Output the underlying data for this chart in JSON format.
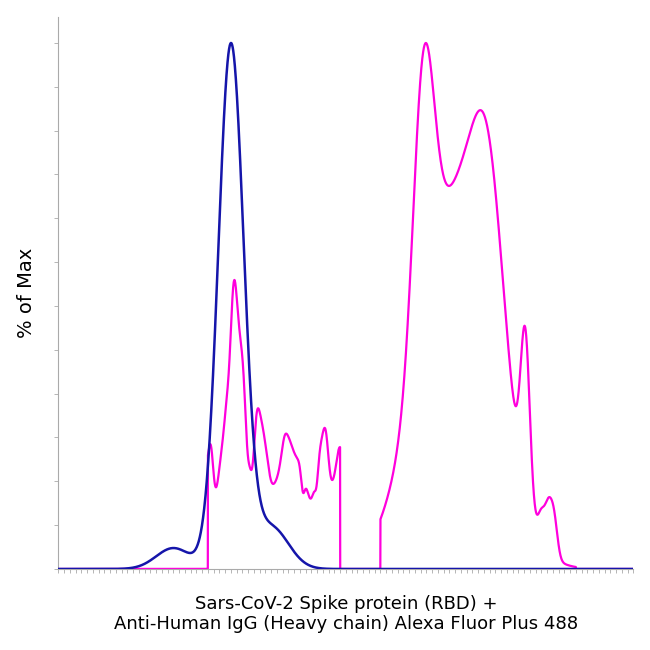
{
  "title_line1": "Sars-CoV-2 Spike protein (RBD) +",
  "title_line2": "Anti-Human IgG (Heavy chain) Alexa Fluor Plus 488",
  "ylabel": "% of Max",
  "blue_color": "#1515aa",
  "magenta_color": "#ff00dd",
  "background_color": "#ffffff",
  "title_fontsize": 13,
  "ylabel_fontsize": 14,
  "xlim": [
    0,
    1000
  ],
  "ylim": [
    0,
    1.05
  ]
}
